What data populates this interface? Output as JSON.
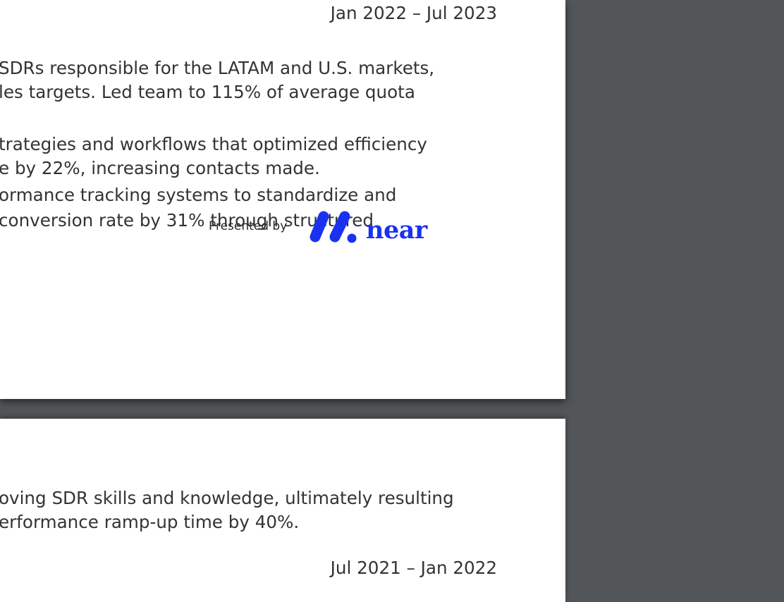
{
  "page1": {
    "date_range": "Jan 2022 – Jul 2023",
    "lines": [
      "SDRs responsible for the LATAM and U.S. markets,",
      "les targets. Led team to 115% of average quota",
      "trategies and workflows that optimized efficiency",
      "e by 22%, increasing contacts made.",
      "ormance tracking systems to standardize and",
      " conversion rate by 31% through structured"
    ]
  },
  "watermark": {
    "presented_by": "Presented by",
    "brand": "near",
    "brand_color": "#1a32f0",
    "icon": "near-logo-icon"
  },
  "page2": {
    "lines": [
      "oving SDR skills and knowledge, ultimately resulting",
      "erformance ramp-up time by 40%."
    ],
    "date_range": "Jul 2021 – Jan 2022"
  },
  "colors": {
    "viewer_background": "#525659",
    "page": "#ffffff",
    "text": "#333333"
  }
}
